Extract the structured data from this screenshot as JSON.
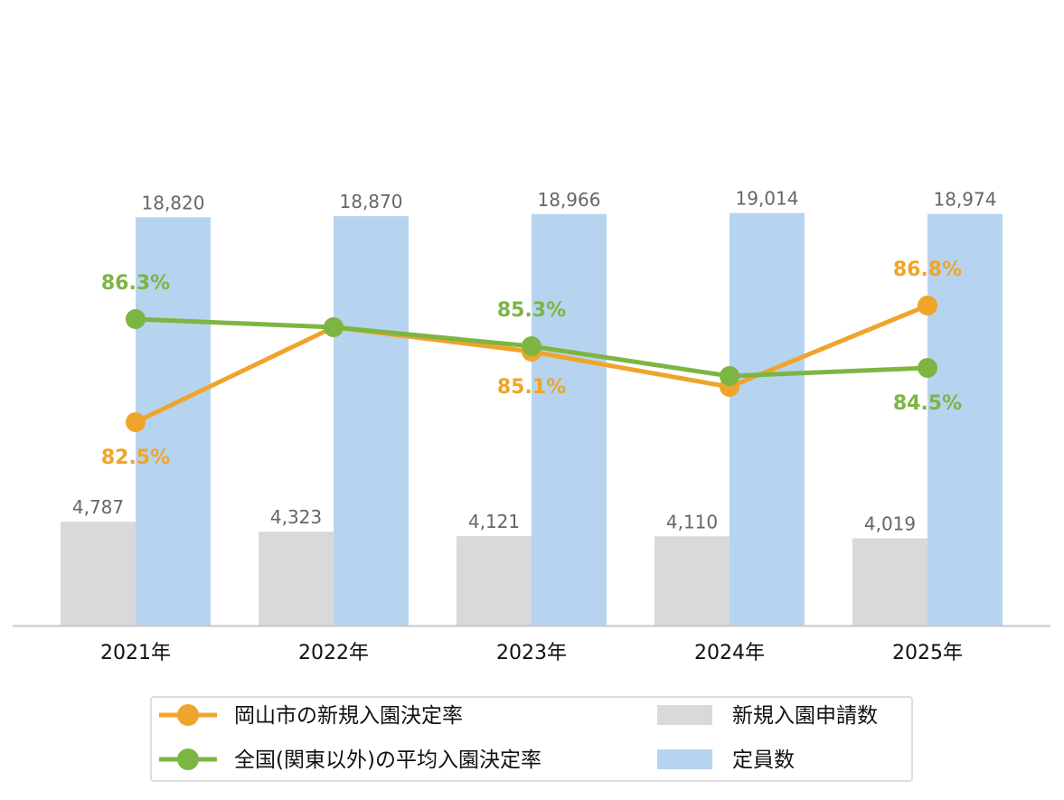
{
  "chart_data": {
    "type": "bar",
    "categories": [
      "2021年",
      "2022年",
      "2023年",
      "2024年",
      "2025年"
    ],
    "ylim": [
      0,
      25000
    ],
    "rate_ylim": [
      75,
      95
    ],
    "series": [
      {
        "name": "新規入園申請数",
        "kind": "bar",
        "color": "#d9d9d9",
        "values": [
          4787,
          4323,
          4121,
          4110,
          4019
        ],
        "labels": [
          "4,787",
          "4,323",
          "4,121",
          "4,110",
          "4,019"
        ]
      },
      {
        "name": "定員数",
        "kind": "bar",
        "color": "#b6d4ef",
        "values": [
          18820,
          18870,
          18966,
          19014,
          18974
        ],
        "labels": [
          "18,820",
          "18,870",
          "18,966",
          "19,014",
          "18,974"
        ]
      },
      {
        "name": "岡山市の新規入園決定率",
        "kind": "line",
        "color": "#f0a42a",
        "values": [
          82.5,
          86.0,
          85.1,
          83.8,
          86.8
        ],
        "labels": [
          "82.5%",
          "",
          "85.1%",
          "",
          "86.8%"
        ],
        "label_positions": [
          "below",
          "none",
          "below",
          "none",
          "above"
        ]
      },
      {
        "name": "全国(関東以外)の平均入園決定率",
        "kind": "line",
        "color": "#7db543",
        "values": [
          86.3,
          86.0,
          85.3,
          84.2,
          84.5
        ],
        "labels": [
          "86.3%",
          "",
          "85.3%",
          "",
          "84.5%"
        ],
        "label_positions": [
          "above",
          "none",
          "above",
          "none",
          "below"
        ]
      }
    ],
    "legend": {
      "placement": "bottom",
      "columns": [
        [
          "岡山市の新規入園決定率",
          "全国(関東以外)の平均入園決定率"
        ],
        [
          "新規入園申請数",
          "定員数"
        ]
      ]
    },
    "grid": false,
    "title": "",
    "xlabel": "",
    "ylabel": ""
  }
}
